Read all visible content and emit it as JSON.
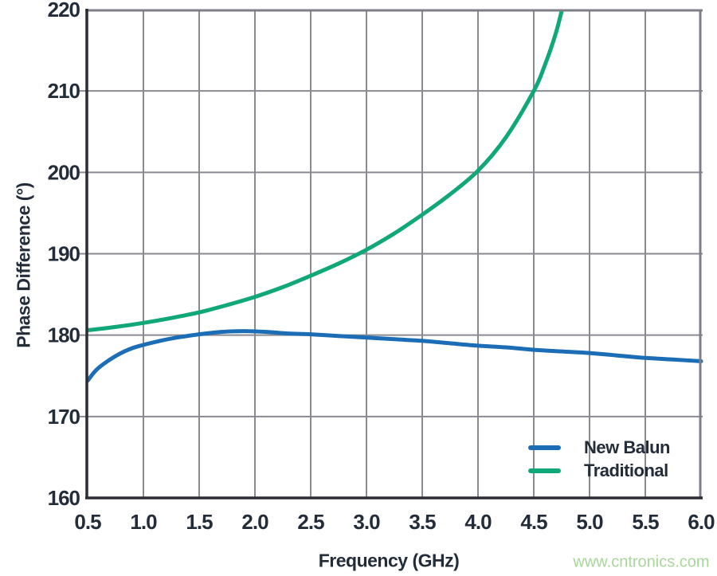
{
  "chart_data": {
    "type": "line",
    "title": "",
    "xlabel": "Frequency (GHz)",
    "ylabel": "Phase Difference (°)",
    "xlim": [
      0.5,
      6.0
    ],
    "ylim": [
      160,
      220
    ],
    "grid": true,
    "legend_position": "inside-bottom-right",
    "x_ticks": {
      "values": [
        0.5,
        1.0,
        1.5,
        2.0,
        2.5,
        3.0,
        3.5,
        4.0,
        4.5,
        5.0,
        5.5,
        6.0
      ],
      "labels": [
        "0.5",
        "1.0",
        "1.5",
        "2.0",
        "2.5",
        "3.0",
        "3.5",
        "4.0",
        "4.5",
        "5.0",
        "5.5",
        "6.0"
      ]
    },
    "y_ticks": {
      "values": [
        160,
        170,
        180,
        190,
        200,
        210,
        220
      ],
      "labels": [
        "160",
        "170",
        "180",
        "190",
        "200",
        "210",
        "220"
      ]
    },
    "series": [
      {
        "name": "New Balun",
        "slug": "new-balun",
        "color": "#1b6eb5",
        "points": [
          [
            0.5,
            174.4
          ],
          [
            0.55,
            175.3
          ],
          [
            0.6,
            176.0
          ],
          [
            0.7,
            177.0
          ],
          [
            0.8,
            177.8
          ],
          [
            0.9,
            178.4
          ],
          [
            1.0,
            178.8
          ],
          [
            1.15,
            179.3
          ],
          [
            1.3,
            179.7
          ],
          [
            1.5,
            180.1
          ],
          [
            1.7,
            180.4
          ],
          [
            1.9,
            180.5
          ],
          [
            2.1,
            180.4
          ],
          [
            2.3,
            180.2
          ],
          [
            2.5,
            180.1
          ],
          [
            2.75,
            179.9
          ],
          [
            3.0,
            179.7
          ],
          [
            3.25,
            179.5
          ],
          [
            3.5,
            179.3
          ],
          [
            3.75,
            179.0
          ],
          [
            4.0,
            178.7
          ],
          [
            4.25,
            178.5
          ],
          [
            4.5,
            178.2
          ],
          [
            4.75,
            178.0
          ],
          [
            5.0,
            177.8
          ],
          [
            5.25,
            177.5
          ],
          [
            5.5,
            177.2
          ],
          [
            5.75,
            177.0
          ],
          [
            6.0,
            176.8
          ]
        ]
      },
      {
        "name": "Traditional",
        "slug": "traditional",
        "color": "#10a878",
        "points": [
          [
            0.5,
            180.6
          ],
          [
            0.75,
            181.0
          ],
          [
            1.0,
            181.5
          ],
          [
            1.25,
            182.1
          ],
          [
            1.5,
            182.8
          ],
          [
            1.75,
            183.7
          ],
          [
            2.0,
            184.7
          ],
          [
            2.25,
            185.9
          ],
          [
            2.5,
            187.3
          ],
          [
            2.75,
            188.8
          ],
          [
            3.0,
            190.5
          ],
          [
            3.25,
            192.5
          ],
          [
            3.5,
            194.8
          ],
          [
            3.75,
            197.3
          ],
          [
            4.0,
            200.2
          ],
          [
            4.25,
            204.3
          ],
          [
            4.5,
            210.0
          ],
          [
            4.6,
            213.2
          ],
          [
            4.7,
            217.2
          ],
          [
            4.78,
            221.5
          ]
        ]
      }
    ],
    "colors": {
      "grid": "#8a8a92",
      "border": "#7e7e88",
      "axis": "#2c2c34",
      "tick_text": "#232d3a",
      "background": "#ffffff"
    }
  },
  "watermark": {
    "text": "www.cntronics.com",
    "color": "#a8d79a"
  }
}
